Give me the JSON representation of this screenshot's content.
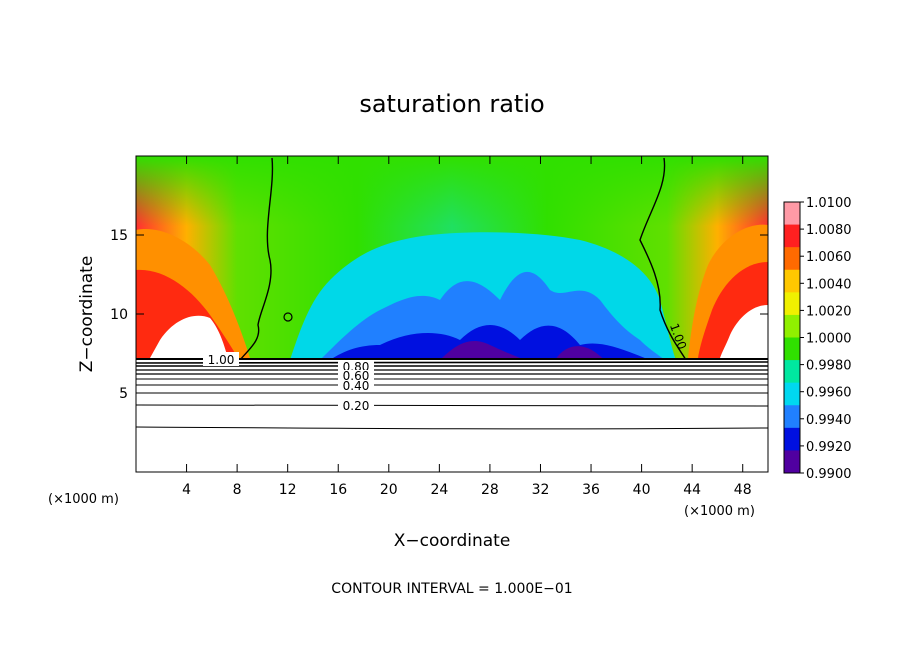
{
  "chart_data": {
    "type": "heatmap",
    "title": "saturation ratio",
    "xlabel": "X−coordinate",
    "ylabel": "Z−coordinate",
    "x_unit_left": "(×1000 m)",
    "x_unit_right": "(×1000 m)",
    "xlim": [
      0,
      50
    ],
    "ylim": [
      0,
      20
    ],
    "x_ticks": [
      4,
      8,
      12,
      16,
      20,
      24,
      28,
      32,
      36,
      40,
      44,
      48
    ],
    "y_ticks": [
      5,
      10,
      15
    ],
    "colorbar": {
      "min": 0.99,
      "max": 1.01,
      "labels": [
        "1.0100",
        "1.0080",
        "1.0060",
        "1.0040",
        "1.0020",
        "1.0000",
        "0.9980",
        "0.9960",
        "0.9940",
        "0.9920",
        "0.9900"
      ],
      "colors": [
        "#ff9aa6",
        "#ff2020",
        "#ff6a00",
        "#ffc800",
        "#f0f000",
        "#90f000",
        "#30e000",
        "#00e8a0",
        "#00d8f0",
        "#2080ff",
        "#0010e0",
        "#5000a0"
      ]
    },
    "contour_labels": [
      "1.00",
      "0.80",
      "0.60",
      "0.40",
      "0.20",
      "1.00"
    ],
    "contour_interval_text": "CONTOUR INTERVAL = 1.000E−01"
  }
}
